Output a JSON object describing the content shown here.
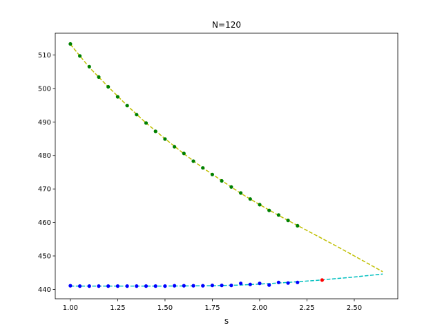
{
  "chart_data": {
    "type": "scatter",
    "title": "N=120",
    "xlabel": "s",
    "ylabel": "",
    "xlim": [
      0.92,
      2.73
    ],
    "ylim": [
      437.2,
      516.5
    ],
    "xticks": [
      "1.00",
      "1.25",
      "1.50",
      "1.75",
      "2.00",
      "2.25",
      "2.50"
    ],
    "xtick_values": [
      1.0,
      1.25,
      1.5,
      1.75,
      2.0,
      2.25,
      2.5
    ],
    "yticks": [
      "440",
      "450",
      "460",
      "470",
      "480",
      "490",
      "500",
      "510"
    ],
    "ytick_values": [
      440,
      450,
      460,
      470,
      480,
      490,
      500,
      510
    ],
    "grid": false,
    "legend": "none",
    "series": [
      {
        "kind": "dashed-line",
        "color": "#bfbf00",
        "x": [
          1.0,
          1.1,
          1.2,
          1.3,
          1.4,
          1.5,
          1.6,
          1.7,
          1.8,
          1.9,
          2.0,
          2.1,
          2.2,
          2.3,
          2.4,
          2.5,
          2.65
        ],
        "y": [
          513.2,
          506.3,
          500.5,
          494.9,
          489.7,
          485.0,
          480.5,
          476.3,
          472.5,
          468.7,
          465.3,
          462.1,
          459.1,
          456.1,
          453.1,
          450.0,
          445.3
        ]
      },
      {
        "kind": "points",
        "color": "#008000",
        "x": [
          1.0,
          1.05,
          1.1,
          1.15,
          1.2,
          1.25,
          1.3,
          1.35,
          1.4,
          1.45,
          1.5,
          1.55,
          1.6,
          1.65,
          1.7,
          1.75,
          1.8,
          1.85,
          1.9,
          1.95,
          2.0,
          2.05,
          2.1,
          2.15,
          2.2
        ],
        "y": [
          513.3,
          509.7,
          506.5,
          503.4,
          500.5,
          497.5,
          494.9,
          492.2,
          489.7,
          487.2,
          484.9,
          482.6,
          480.6,
          478.3,
          476.3,
          474.3,
          472.4,
          470.6,
          468.8,
          467.0,
          465.3,
          463.6,
          462.2,
          460.6,
          459.0
        ]
      },
      {
        "kind": "dashed-line",
        "color": "#00bfbf",
        "x": [
          1.0,
          1.25,
          1.5,
          1.75,
          1.9,
          2.0,
          2.1,
          2.2,
          2.3,
          2.4,
          2.5,
          2.65
        ],
        "y": [
          441.0,
          441.0,
          441.0,
          441.1,
          441.3,
          441.6,
          441.9,
          442.3,
          442.7,
          443.2,
          443.7,
          444.6
        ]
      },
      {
        "kind": "points",
        "color": "#0000ff",
        "x": [
          1.0,
          1.05,
          1.1,
          1.15,
          1.2,
          1.25,
          1.3,
          1.35,
          1.4,
          1.45,
          1.5,
          1.55,
          1.6,
          1.65,
          1.7,
          1.75,
          1.8,
          1.85,
          1.9,
          1.95,
          2.0,
          2.05,
          2.1,
          2.15,
          2.2
        ],
        "y": [
          441.1,
          441.0,
          441.0,
          441.0,
          441.0,
          441.0,
          441.0,
          441.0,
          441.0,
          441.0,
          441.0,
          441.1,
          441.1,
          441.1,
          441.1,
          441.2,
          441.2,
          441.2,
          441.8,
          441.5,
          441.8,
          441.3,
          442.1,
          441.9,
          442.1
        ]
      },
      {
        "kind": "points",
        "color": "#ff0000",
        "x": [
          2.33
        ],
        "y": [
          442.8
        ]
      }
    ]
  }
}
